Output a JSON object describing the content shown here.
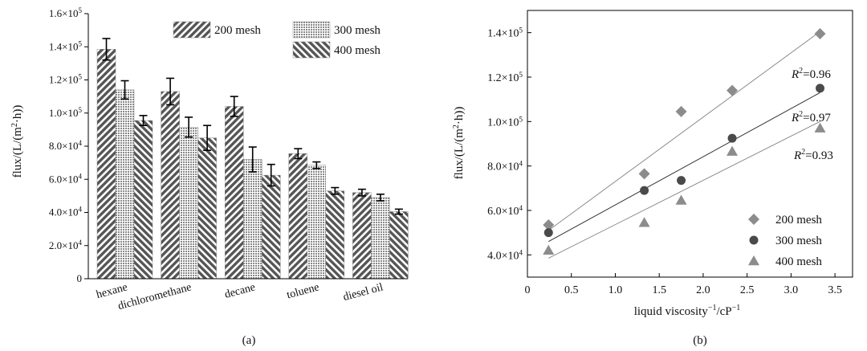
{
  "chart_data": [
    {
      "type": "bar",
      "caption": "(a)",
      "categories": [
        "hexane",
        "dichloromethane",
        "decane",
        "toluene",
        "diesel oil"
      ],
      "series": [
        {
          "name": "200 mesh",
          "values": [
            138500,
            113000,
            104000,
            75500,
            52000
          ],
          "errors": [
            6500,
            8000,
            6000,
            3000,
            2000
          ]
        },
        {
          "name": "300 mesh",
          "values": [
            114000,
            91500,
            72000,
            68500,
            49000
          ],
          "errors": [
            5500,
            6000,
            7500,
            2000,
            2000
          ]
        },
        {
          "name": "400 mesh",
          "values": [
            95500,
            85000,
            62500,
            53000,
            40500
          ],
          "errors": [
            3000,
            7500,
            6500,
            2000,
            1500
          ]
        }
      ],
      "ylabel_pre": "flux/(L/(m",
      "ylabel_sup": "2",
      "ylabel_post": "·h))",
      "ylim": [
        0,
        160000
      ],
      "yticks": [
        {
          "value": 0,
          "mant": "0",
          "exp": ""
        },
        {
          "value": 20000,
          "mant": "2.0×10",
          "exp": "4"
        },
        {
          "value": 40000,
          "mant": "4.0×10",
          "exp": "4"
        },
        {
          "value": 60000,
          "mant": "6.0×10",
          "exp": "4"
        },
        {
          "value": 80000,
          "mant": "8.0×10",
          "exp": "4"
        },
        {
          "value": 100000,
          "mant": "1.0×10",
          "exp": "5"
        },
        {
          "value": 120000,
          "mant": "1.2×10",
          "exp": "5"
        },
        {
          "value": 140000,
          "mant": "1.4×10",
          "exp": "5"
        },
        {
          "value": 160000,
          "mant": "1.6×10",
          "exp": "5"
        }
      ],
      "legend_position": "top-right"
    },
    {
      "type": "scatter",
      "caption": "(b)",
      "xlabel_pre": "liquid viscosity",
      "xlabel_sup1": "−1",
      "xlabel_mid": "/cP",
      "xlabel_sup2": "−1",
      "ylabel_pre": "flux/(L/(m",
      "ylabel_sup": "2",
      "ylabel_post": "·h))",
      "xlim": [
        0,
        3.7
      ],
      "ylim": [
        30000,
        150000
      ],
      "xticks": [
        "0",
        "0.5",
        "1.0",
        "1.5",
        "2.0",
        "2.5",
        "3.0",
        "3.5"
      ],
      "xtick_values": [
        0,
        0.5,
        1.0,
        1.5,
        2.0,
        2.5,
        3.0,
        3.5
      ],
      "yticks": [
        {
          "value": 40000,
          "mant": "4.0×10",
          "exp": "4"
        },
        {
          "value": 60000,
          "mant": "6.0×10",
          "exp": "4"
        },
        {
          "value": 80000,
          "mant": "8.0×10",
          "exp": "4"
        },
        {
          "value": 100000,
          "mant": "1.0×10",
          "exp": "5"
        },
        {
          "value": 120000,
          "mant": "1.2×10",
          "exp": "5"
        },
        {
          "value": 140000,
          "mant": "1.4×10",
          "exp": "5"
        }
      ],
      "series": [
        {
          "name": "200 mesh",
          "marker": "diamond",
          "color": "#8c8c8c",
          "x": [
            0.24,
            1.33,
            1.75,
            2.33,
            3.33
          ],
          "y": [
            53500,
            76500,
            104500,
            114000,
            139500
          ],
          "fit": {
            "x": [
              0.24,
              3.33
            ],
            "y": [
              51000,
              140500
            ]
          },
          "r2": "0.96"
        },
        {
          "name": "300 mesh",
          "marker": "circle",
          "color": "#4a4a4a",
          "x": [
            0.24,
            1.33,
            1.75,
            2.33,
            3.33
          ],
          "y": [
            50000,
            69000,
            73500,
            92500,
            115000
          ],
          "fit": {
            "x": [
              0.24,
              3.33
            ],
            "y": [
              46000,
              113000
            ]
          },
          "r2": "0.97"
        },
        {
          "name": "400 mesh",
          "marker": "triangle",
          "color": "#8c8c8c",
          "x": [
            0.24,
            1.33,
            1.75,
            2.33,
            3.33
          ],
          "y": [
            42000,
            54500,
            64500,
            86500,
            97000
          ],
          "fit": {
            "x": [
              0.24,
              3.33
            ],
            "y": [
              38500,
              100000
            ]
          },
          "r2": "0.93"
        }
      ],
      "r2_label": "R",
      "legend_position": "bottom-right"
    }
  ]
}
